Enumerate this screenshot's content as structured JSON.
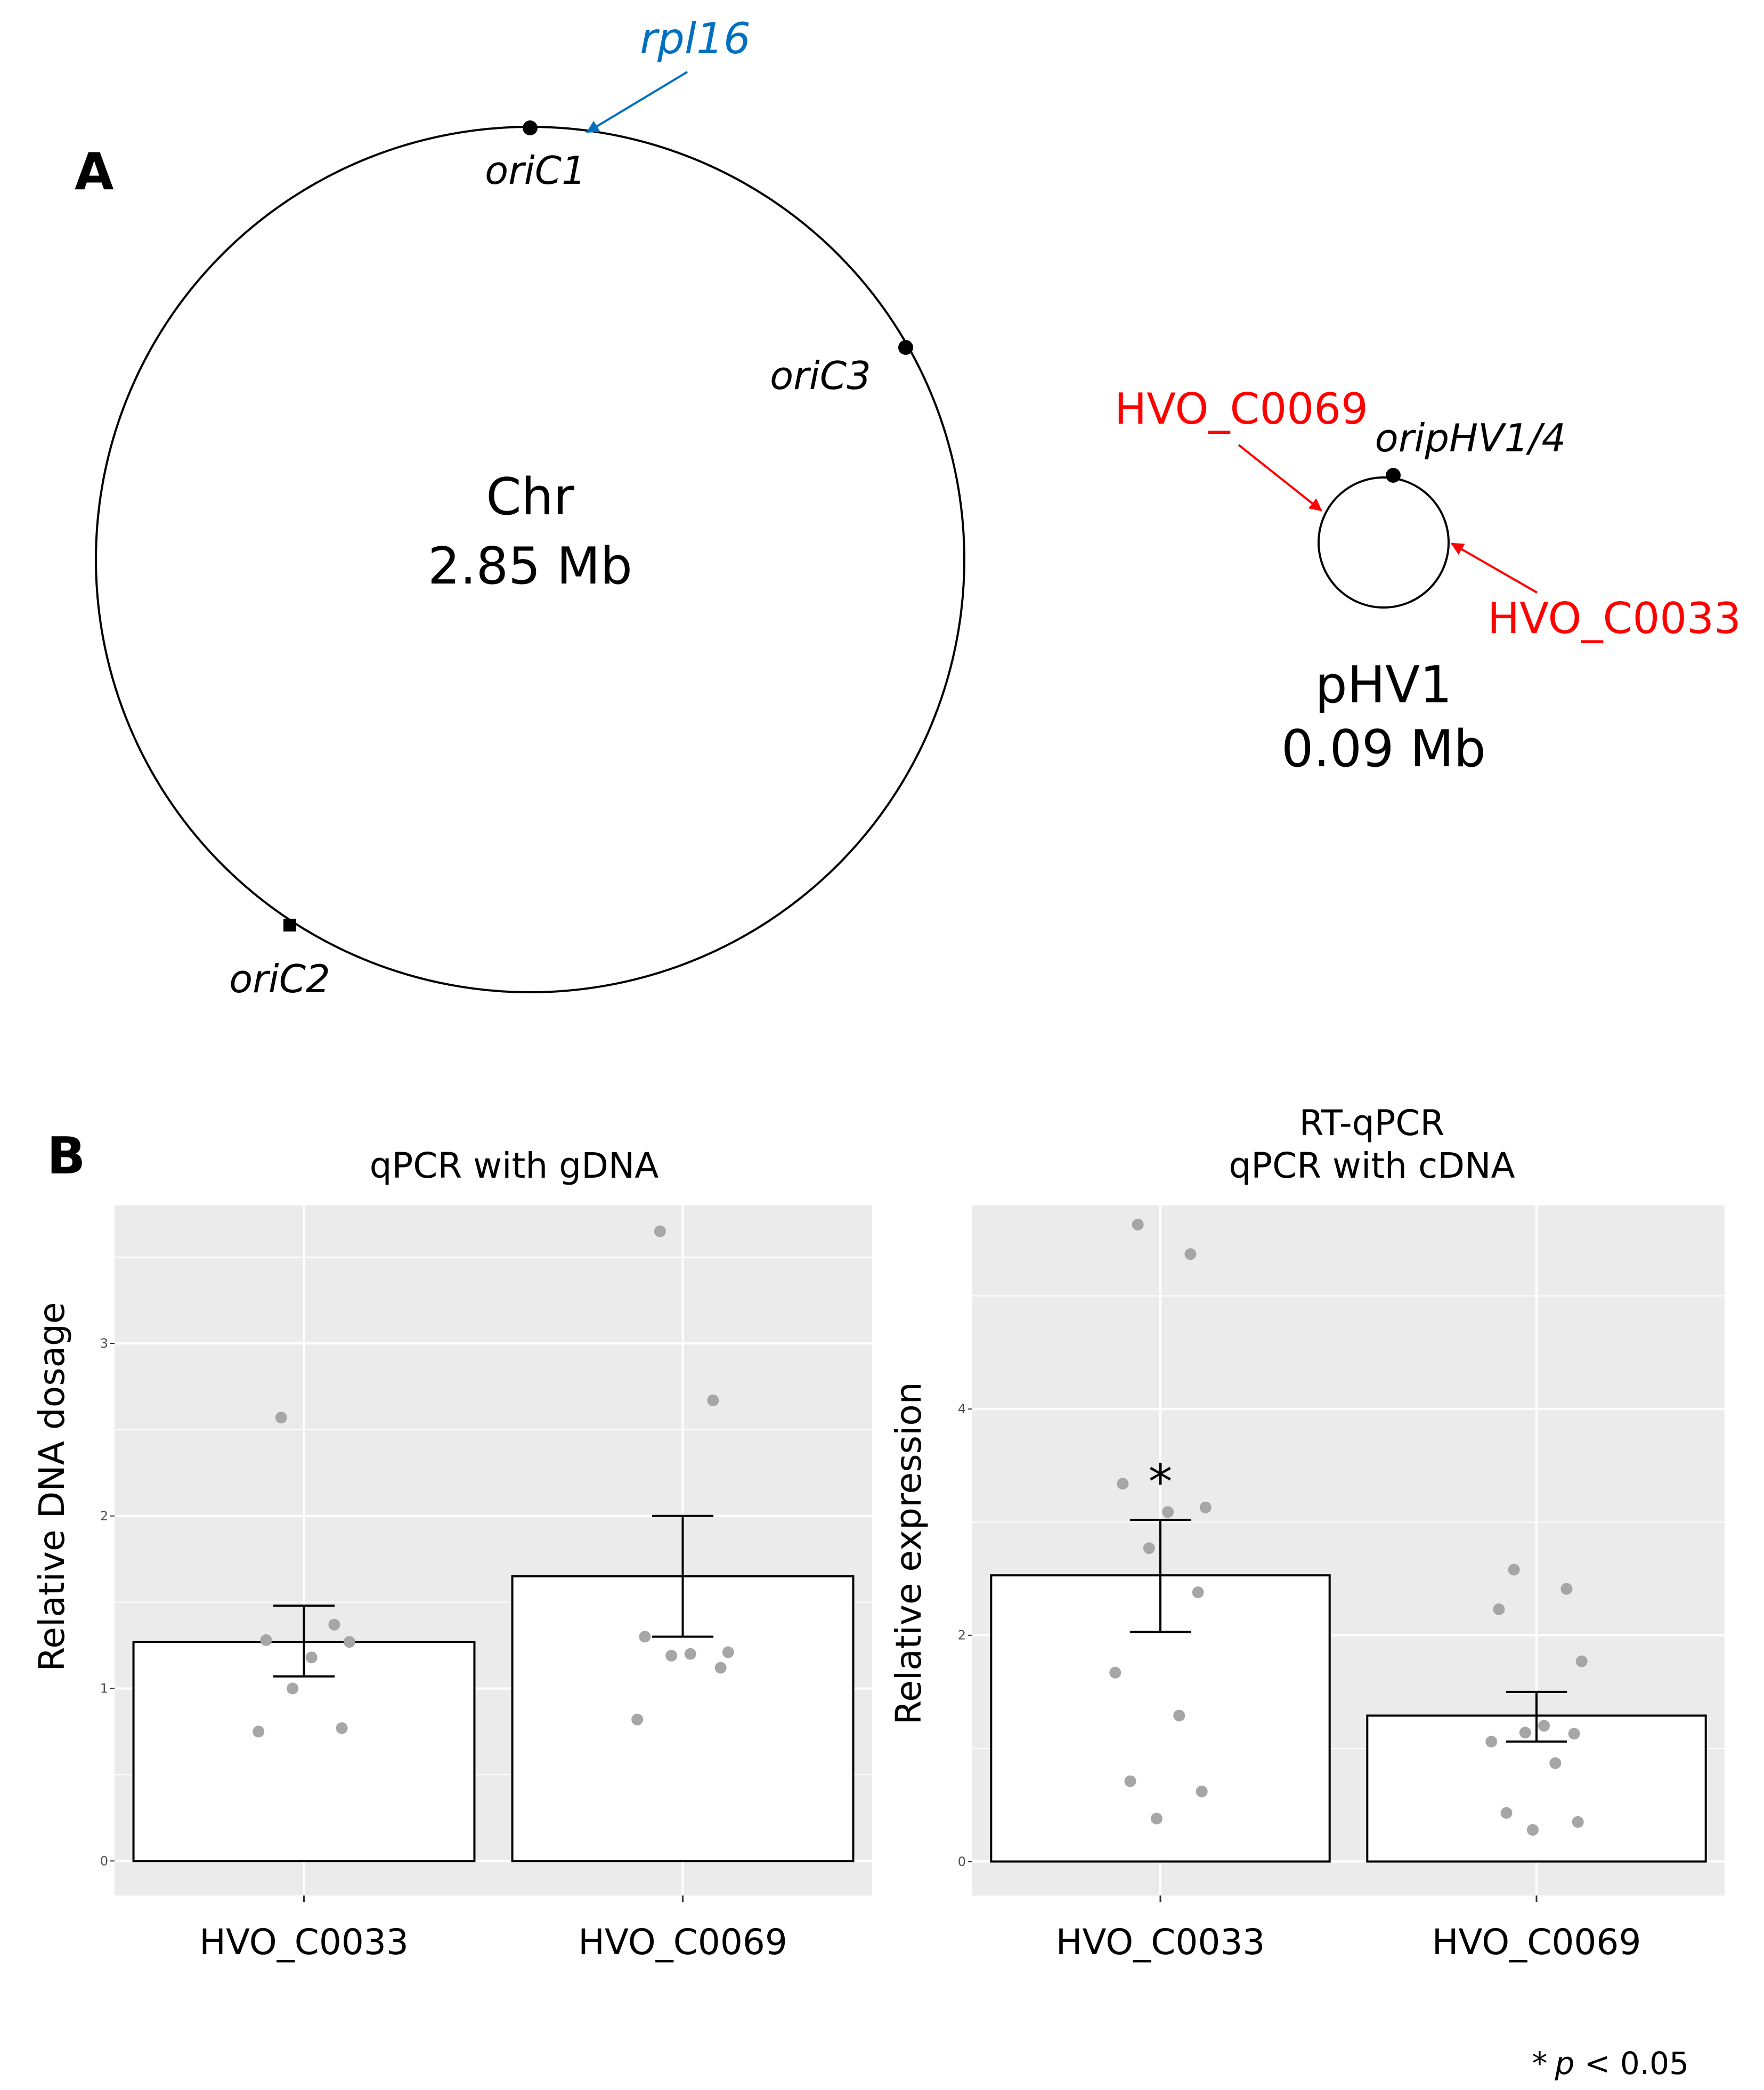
{
  "panel_a": {
    "letter": "A",
    "chromosome": {
      "name": "Chr",
      "size": "2.85 Mb",
      "origins": [
        {
          "label": "oriC1"
        },
        {
          "label": "oriC2"
        },
        {
          "label": "oriC3"
        }
      ],
      "marker": {
        "label": "rpl16",
        "color": "#0070c0"
      }
    },
    "plasmid": {
      "name": "pHV1",
      "size": "0.09 Mb",
      "origin": {
        "label": "oripHV1/4"
      },
      "genes": [
        {
          "label": "HVO_C0069",
          "color": "#ff0000"
        },
        {
          "label": "HVO_C0033",
          "color": "#ff0000"
        }
      ]
    }
  },
  "panel_b": {
    "letter": "B",
    "footnote": {
      "star": "*",
      "p": "p",
      "rest": " < 0.05"
    }
  },
  "chart_data": [
    {
      "type": "bar",
      "title": "qPCR with gDNA",
      "xlabel": "",
      "ylabel": "Relative DNA dosage",
      "categories": [
        "HVO_C0033",
        "HVO_C0069"
      ],
      "values": [
        1.27,
        1.65
      ],
      "error_low": [
        1.07,
        1.3
      ],
      "error_high": [
        1.48,
        2.0
      ],
      "ylim": [
        -0.2,
        3.8
      ],
      "yticks": [
        0,
        1,
        2,
        3
      ],
      "grid": true,
      "points": [
        [
          2.57,
          1.37,
          1.28,
          1.27,
          1.18,
          1.0,
          0.77,
          0.75
        ],
        [
          3.65,
          2.67,
          1.3,
          1.21,
          1.2,
          1.19,
          1.12,
          0.82
        ]
      ],
      "significance": [
        "",
        ""
      ]
    },
    {
      "type": "bar",
      "title": "RT-qPCR\nqPCR with cDNA",
      "xlabel": "",
      "ylabel": "Relative expression",
      "categories": [
        "HVO_C0033",
        "HVO_C0069"
      ],
      "values": [
        2.53,
        1.29
      ],
      "error_low": [
        2.03,
        1.06
      ],
      "error_high": [
        3.02,
        1.5
      ],
      "ylim": [
        -0.3,
        5.8
      ],
      "yticks": [
        0,
        2,
        4
      ],
      "grid": true,
      "points": [
        [
          5.63,
          5.37,
          3.34,
          3.13,
          3.09,
          2.77,
          2.38,
          1.67,
          1.29,
          0.71,
          0.62,
          0.38
        ],
        [
          2.58,
          2.41,
          2.23,
          1.77,
          1.2,
          1.14,
          1.13,
          1.06,
          0.87,
          0.43,
          0.35,
          0.28
        ]
      ],
      "significance": [
        "*",
        ""
      ]
    }
  ]
}
